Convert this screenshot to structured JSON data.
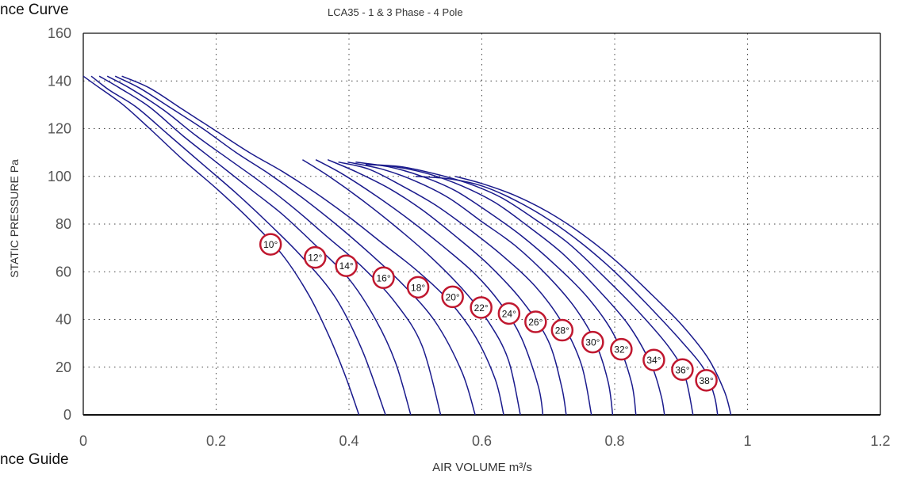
{
  "page": {
    "heading_top": "nce Curve",
    "heading_bottom": "nce Guide"
  },
  "chart_data": {
    "type": "line",
    "title": "LCA35  - 1 & 3 Phase - 4 Pole",
    "xlabel": "AIR VOLUME m³/s",
    "ylabel": "STATIC PRESSURE Pa",
    "xlim": [
      0,
      1.2
    ],
    "ylim": [
      0,
      160
    ],
    "x_ticks": [
      "0",
      "0.2",
      "0.4",
      "0.6",
      "0.8",
      "1",
      "1.2"
    ],
    "y_ticks": [
      "0",
      "20",
      "40",
      "60",
      "80",
      "100",
      "120",
      "140",
      "160"
    ],
    "grid": "dotted",
    "line_color": "#1a1a8c",
    "label_color": "#c0182f",
    "series": [
      {
        "label": "10°",
        "label_at": [
          0.282,
          71.5
        ],
        "points": [
          [
            0.0,
            142
          ],
          [
            0.02,
            138
          ],
          [
            0.06,
            130
          ],
          [
            0.1,
            120
          ],
          [
            0.15,
            107
          ],
          [
            0.2,
            95
          ],
          [
            0.25,
            82
          ],
          [
            0.3,
            67
          ],
          [
            0.34,
            50
          ],
          [
            0.37,
            33
          ],
          [
            0.395,
            16
          ],
          [
            0.415,
            0
          ]
        ]
      },
      {
        "label": "12°",
        "label_at": [
          0.349,
          66
        ],
        "points": [
          [
            0.012,
            142
          ],
          [
            0.04,
            136
          ],
          [
            0.08,
            129
          ],
          [
            0.13,
            117
          ],
          [
            0.18,
            105
          ],
          [
            0.23,
            93
          ],
          [
            0.28,
            80
          ],
          [
            0.33,
            66
          ],
          [
            0.38,
            49
          ],
          [
            0.42,
            27
          ],
          [
            0.455,
            0
          ]
        ]
      },
      {
        "label": "14°",
        "label_at": [
          0.396,
          62.5
        ],
        "points": [
          [
            0.024,
            142
          ],
          [
            0.055,
            137
          ],
          [
            0.1,
            129
          ],
          [
            0.15,
            117
          ],
          [
            0.2,
            106
          ],
          [
            0.25,
            95
          ],
          [
            0.3,
            84
          ],
          [
            0.35,
            71
          ],
          [
            0.4,
            57
          ],
          [
            0.44,
            40
          ],
          [
            0.47,
            22
          ],
          [
            0.493,
            0
          ]
        ]
      },
      {
        "label": "16°",
        "label_at": [
          0.452,
          57.5
        ],
        "points": [
          [
            0.036,
            142
          ],
          [
            0.07,
            137
          ],
          [
            0.12,
            128
          ],
          [
            0.17,
            117
          ],
          [
            0.22,
            107
          ],
          [
            0.27,
            97
          ],
          [
            0.32,
            86
          ],
          [
            0.37,
            74
          ],
          [
            0.42,
            62
          ],
          [
            0.47,
            47
          ],
          [
            0.51,
            29
          ],
          [
            0.538,
            0
          ]
        ]
      },
      {
        "label": "18°",
        "label_at": [
          0.504,
          53.5
        ],
        "points": [
          [
            0.048,
            142
          ],
          [
            0.085,
            137
          ],
          [
            0.13,
            129
          ],
          [
            0.18,
            120
          ],
          [
            0.23,
            110
          ],
          [
            0.28,
            101
          ],
          [
            0.33,
            91
          ],
          [
            0.38,
            80
          ],
          [
            0.43,
            68
          ],
          [
            0.48,
            55
          ],
          [
            0.53,
            39
          ],
          [
            0.57,
            18
          ],
          [
            0.59,
            0
          ]
        ]
      },
      {
        "label": "20°",
        "label_at": [
          0.556,
          49.5
        ],
        "points": [
          [
            0.058,
            142
          ],
          [
            0.1,
            137
          ],
          [
            0.15,
            128
          ],
          [
            0.2,
            119
          ],
          [
            0.25,
            110
          ],
          [
            0.3,
            102
          ],
          [
            0.35,
            93
          ],
          [
            0.4,
            83
          ],
          [
            0.45,
            72
          ],
          [
            0.5,
            61
          ],
          [
            0.55,
            48
          ],
          [
            0.59,
            33
          ],
          [
            0.62,
            15
          ],
          [
            0.633,
            0
          ]
        ]
      },
      {
        "label": "22°",
        "label_at": [
          0.599,
          45
        ],
        "points": [
          [
            0.33,
            107
          ],
          [
            0.37,
            100
          ],
          [
            0.42,
            90
          ],
          [
            0.47,
            79
          ],
          [
            0.52,
            67
          ],
          [
            0.57,
            53
          ],
          [
            0.61,
            39
          ],
          [
            0.64,
            23
          ],
          [
            0.658,
            0
          ]
        ]
      },
      {
        "label": "24°",
        "label_at": [
          0.641,
          42.5
        ],
        "points": [
          [
            0.35,
            107
          ],
          [
            0.39,
            101
          ],
          [
            0.44,
            92
          ],
          [
            0.49,
            82
          ],
          [
            0.54,
            71
          ],
          [
            0.59,
            59
          ],
          [
            0.63,
            46
          ],
          [
            0.66,
            32
          ],
          [
            0.685,
            12
          ],
          [
            0.692,
            0
          ]
        ]
      },
      {
        "label": "26°",
        "label_at": [
          0.681,
          39
        ],
        "points": [
          [
            0.368,
            107
          ],
          [
            0.41,
            102
          ],
          [
            0.46,
            95
          ],
          [
            0.51,
            86
          ],
          [
            0.56,
            75
          ],
          [
            0.61,
            63
          ],
          [
            0.66,
            48
          ],
          [
            0.7,
            31
          ],
          [
            0.72,
            12
          ],
          [
            0.727,
            0
          ]
        ]
      },
      {
        "label": "28°",
        "label_at": [
          0.721,
          35.5
        ],
        "points": [
          [
            0.384,
            106
          ],
          [
            0.43,
            103
          ],
          [
            0.48,
            96
          ],
          [
            0.53,
            88
          ],
          [
            0.58,
            78
          ],
          [
            0.63,
            67
          ],
          [
            0.68,
            54
          ],
          [
            0.72,
            39
          ],
          [
            0.75,
            21
          ],
          [
            0.765,
            0
          ]
        ]
      },
      {
        "label": "30°",
        "label_at": [
          0.767,
          30.5
        ],
        "points": [
          [
            0.398,
            106
          ],
          [
            0.45,
            103
          ],
          [
            0.5,
            98
          ],
          [
            0.55,
            91
          ],
          [
            0.6,
            81
          ],
          [
            0.65,
            71
          ],
          [
            0.7,
            58
          ],
          [
            0.74,
            45
          ],
          [
            0.77,
            31
          ],
          [
            0.79,
            14
          ],
          [
            0.797,
            0
          ]
        ]
      },
      {
        "label": "32°",
        "label_at": [
          0.81,
          27.5
        ],
        "points": [
          [
            0.41,
            106
          ],
          [
            0.46,
            104
          ],
          [
            0.51,
            100
          ],
          [
            0.56,
            94
          ],
          [
            0.61,
            85
          ],
          [
            0.66,
            75
          ],
          [
            0.71,
            63
          ],
          [
            0.76,
            49
          ],
          [
            0.8,
            33
          ],
          [
            0.825,
            14
          ],
          [
            0.832,
            0
          ]
        ]
      },
      {
        "label": "34°",
        "label_at": [
          0.859,
          23
        ],
        "points": [
          [
            0.425,
            105
          ],
          [
            0.47,
            104
          ],
          [
            0.52,
            101
          ],
          [
            0.57,
            96
          ],
          [
            0.62,
            89
          ],
          [
            0.67,
            79
          ],
          [
            0.72,
            68
          ],
          [
            0.77,
            54
          ],
          [
            0.82,
            38
          ],
          [
            0.855,
            21
          ],
          [
            0.87,
            8
          ],
          [
            0.875,
            0
          ]
        ]
      },
      {
        "label": "36°",
        "label_at": [
          0.902,
          19
        ],
        "points": [
          [
            0.43,
            105
          ],
          [
            0.48,
            104
          ],
          [
            0.53,
            101
          ],
          [
            0.58,
            97
          ],
          [
            0.63,
            91
          ],
          [
            0.68,
            82
          ],
          [
            0.73,
            72
          ],
          [
            0.78,
            59
          ],
          [
            0.83,
            45
          ],
          [
            0.88,
            29
          ],
          [
            0.905,
            17
          ],
          [
            0.918,
            0
          ]
        ]
      },
      {
        "label": "38°",
        "label_at": [
          0.938,
          14.5
        ],
        "points": [
          [
            0.5,
            100
          ],
          [
            0.55,
            99
          ],
          [
            0.6,
            96
          ],
          [
            0.65,
            90
          ],
          [
            0.7,
            82
          ],
          [
            0.75,
            72
          ],
          [
            0.8,
            60
          ],
          [
            0.85,
            46
          ],
          [
            0.9,
            31
          ],
          [
            0.935,
            19
          ],
          [
            0.95,
            8
          ],
          [
            0.955,
            0
          ]
        ]
      },
      {
        "label": "",
        "label_at": null,
        "points": [
          [
            0.56,
            100
          ],
          [
            0.6,
            97
          ],
          [
            0.65,
            92
          ],
          [
            0.7,
            85
          ],
          [
            0.75,
            76
          ],
          [
            0.8,
            65
          ],
          [
            0.85,
            52
          ],
          [
            0.9,
            38
          ],
          [
            0.94,
            24
          ],
          [
            0.965,
            10
          ],
          [
            0.975,
            0
          ]
        ]
      }
    ]
  }
}
